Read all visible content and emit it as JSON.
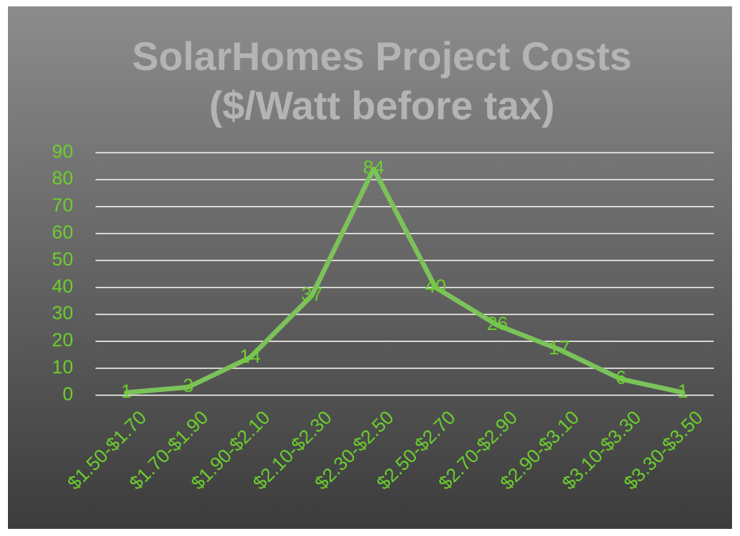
{
  "chart_data": {
    "type": "line",
    "title": "SolarHomes Project Costs ($/Watt before tax)",
    "categories": [
      "$1.50-$1.70",
      "$1.70-$1.90",
      "$1.90-$2.10",
      "$2.10-$2.30",
      "$2.30-$2.50",
      "$2.50-$2.70",
      "$2.70-$2.90",
      "$2.90-$3.10",
      "$3.10-$3.30",
      "$3.30-$3.50"
    ],
    "values": [
      1,
      3,
      14,
      37,
      84,
      40,
      26,
      17,
      6,
      1
    ],
    "color": "#7cc25b",
    "label_color": "#6ccf2e",
    "ylim": [
      0,
      90
    ],
    "yticks": [
      0,
      10,
      20,
      30,
      40,
      50,
      60,
      70,
      80,
      90
    ],
    "grid": true
  }
}
